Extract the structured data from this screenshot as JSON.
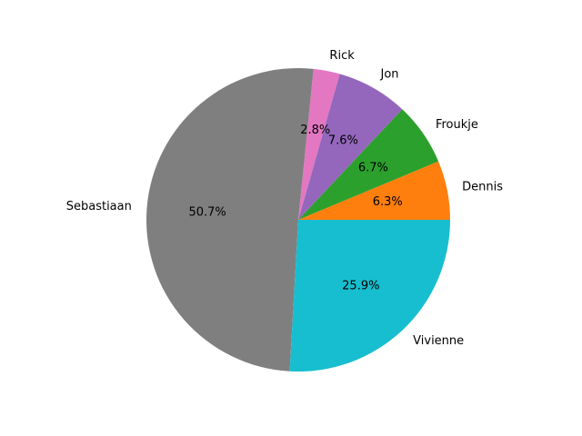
{
  "chart_data": {
    "type": "pie",
    "title": "",
    "labels": [
      "Dennis",
      "Froukje",
      "Jon",
      "Rick",
      "Sebastiaan",
      "Vivienne"
    ],
    "values": [
      6.3,
      6.7,
      7.6,
      2.8,
      50.7,
      25.9
    ],
    "percent_labels": [
      "6.3%",
      "6.7%",
      "7.6%",
      "2.8%",
      "50.7%",
      "25.9%"
    ],
    "colors": [
      "#ff7f0e",
      "#2ca02c",
      "#9467bd",
      "#e377c2",
      "#7f7f7f",
      "#17becf"
    ],
    "start_angle_deg": 0,
    "direction": "counterclockwise",
    "legend": "none"
  }
}
